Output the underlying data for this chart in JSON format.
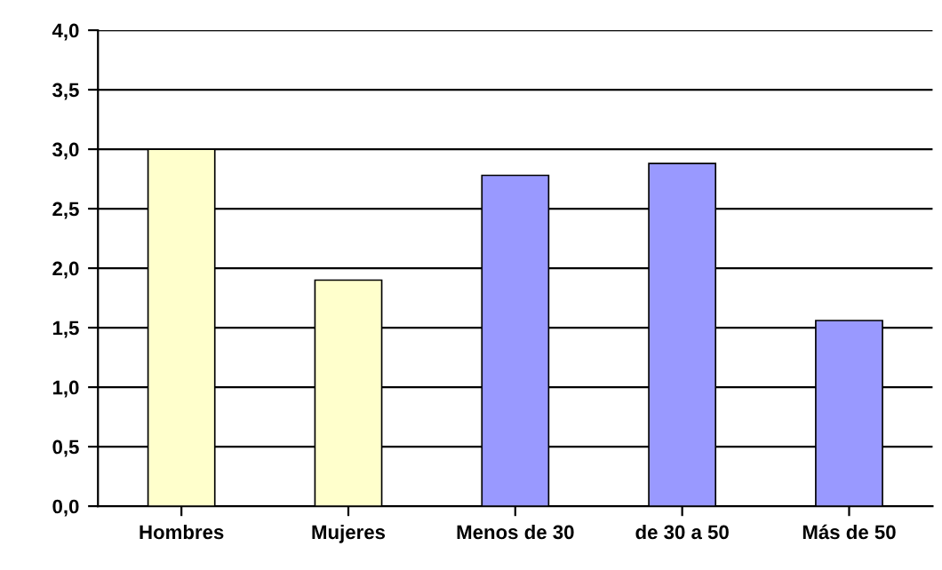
{
  "chart_data": {
    "type": "bar",
    "categories": [
      "Hombres",
      "Mujeres",
      "Menos de 30",
      "de 30 a 50",
      "Más de 50"
    ],
    "values": [
      3.0,
      1.9,
      2.78,
      2.88,
      1.56
    ],
    "colors": [
      "#ffffcc",
      "#ffffcc",
      "#9999ff",
      "#9999ff",
      "#9999ff"
    ],
    "ylim": [
      0,
      4
    ],
    "yticks": [
      {
        "value": 0,
        "label": "0,0"
      },
      {
        "value": 0.5,
        "label": "0,5"
      },
      {
        "value": 1,
        "label": "1,0"
      },
      {
        "value": 1.5,
        "label": "1,5"
      },
      {
        "value": 2,
        "label": "2,0"
      },
      {
        "value": 2.5,
        "label": "2,5"
      },
      {
        "value": 3,
        "label": "3,0"
      },
      {
        "value": 3.5,
        "label": "3,5"
      },
      {
        "value": 4,
        "label": "4,0"
      }
    ],
    "grid": "y"
  }
}
